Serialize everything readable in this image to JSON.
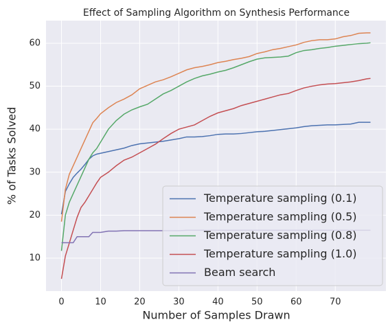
{
  "chart_data": {
    "type": "line",
    "title": "Effect of Sampling Algorithm on Synthesis Performance",
    "xlabel": "Number of Samples Drawn",
    "ylabel": "% of Tasks Solved",
    "x": [
      0,
      1,
      2,
      3,
      4,
      5,
      6,
      7,
      8,
      9,
      10,
      12,
      14,
      16,
      18,
      20,
      22,
      24,
      26,
      28,
      30,
      32,
      34,
      36,
      38,
      40,
      42,
      44,
      46,
      48,
      50,
      52,
      54,
      56,
      58,
      60,
      62,
      64,
      66,
      68,
      70,
      72,
      74,
      76,
      78,
      79
    ],
    "series": [
      {
        "name": "Temperature sampling (0.1)",
        "color": "#4c72b0",
        "values": [
          20.2,
          25.5,
          27.3,
          28.8,
          29.8,
          30.7,
          31.8,
          33,
          33.8,
          34.2,
          34.4,
          34.8,
          35.2,
          35.6,
          36.2,
          36.6,
          36.8,
          37,
          37.2,
          37.5,
          37.8,
          38.2,
          38.2,
          38.3,
          38.5,
          38.8,
          38.9,
          38.9,
          39,
          39.2,
          39.4,
          39.5,
          39.7,
          39.9,
          40.1,
          40.3,
          40.6,
          40.8,
          40.9,
          41,
          41,
          41.1,
          41.2,
          41.6,
          41.6,
          41.6
        ]
      },
      {
        "name": "Temperature sampling (0.5)",
        "color": "#dd8452",
        "values": [
          18.5,
          26,
          29.5,
          31.5,
          33.5,
          35.5,
          37.5,
          39.5,
          41.5,
          42.5,
          43.6,
          45,
          46.2,
          47,
          48,
          49.4,
          50.2,
          51,
          51.5,
          52.2,
          53,
          53.8,
          54.3,
          54.6,
          55,
          55.5,
          55.8,
          56.2,
          56.5,
          56.9,
          57.6,
          58,
          58.5,
          58.8,
          59.2,
          59.6,
          60.2,
          60.6,
          60.8,
          60.8,
          61,
          61.5,
          61.8,
          62.3,
          62.4,
          62.4
        ]
      },
      {
        "name": "Temperature sampling (0.8)",
        "color": "#55a868",
        "values": [
          11.7,
          20,
          23,
          25,
          27,
          29,
          31,
          33,
          34.5,
          35.5,
          37,
          40,
          42,
          43.5,
          44.5,
          45.2,
          45.8,
          47,
          48.2,
          49,
          50,
          51,
          51.8,
          52.4,
          52.8,
          53.3,
          53.7,
          54.3,
          55,
          55.7,
          56.3,
          56.6,
          56.7,
          56.8,
          57,
          57.8,
          58.3,
          58.5,
          58.8,
          59,
          59.3,
          59.5,
          59.7,
          59.9,
          60,
          60.1
        ]
      },
      {
        "name": "Temperature sampling (1.0)",
        "color": "#c44e52",
        "values": [
          5.2,
          10.5,
          13.5,
          16.5,
          19.5,
          21.8,
          23,
          24.5,
          26,
          27.5,
          28.8,
          30,
          31.5,
          32.8,
          33.5,
          34.5,
          35.5,
          36.5,
          37.8,
          39,
          40,
          40.5,
          41,
          42,
          43,
          43.8,
          44.3,
          44.8,
          45.5,
          46,
          46.5,
          47,
          47.5,
          48,
          48.3,
          49,
          49.6,
          50,
          50.3,
          50.5,
          50.6,
          50.8,
          51,
          51.3,
          51.7,
          51.8
        ]
      },
      {
        "name": "Beam search",
        "color": "#8172b3",
        "values": [
          13.6,
          13.6,
          13.6,
          13.6,
          15,
          15,
          15,
          15,
          16,
          16,
          16,
          16.3,
          16.3,
          16.4,
          16.4,
          16.4,
          16.4,
          16.4,
          16.4,
          16.4,
          16.4,
          16.5,
          16.5,
          16.5,
          16.5,
          16.5,
          16.5,
          16.5,
          16.5,
          16.5,
          16.5,
          16.5,
          16.5,
          16.5,
          16.5,
          16.5,
          16.5,
          16.5,
          16.5,
          16.5,
          16.5,
          16.5,
          16.5,
          16.5,
          16.5,
          16.5
        ]
      }
    ],
    "xlim": [
      -3.95,
      82.95
    ],
    "ylim": [
      2.34,
      65.26
    ],
    "xticks": [
      0,
      10,
      20,
      30,
      40,
      50,
      60,
      70
    ],
    "yticks": [
      10,
      20,
      30,
      40,
      50,
      60
    ],
    "grid": true,
    "legend": "lower right"
  }
}
